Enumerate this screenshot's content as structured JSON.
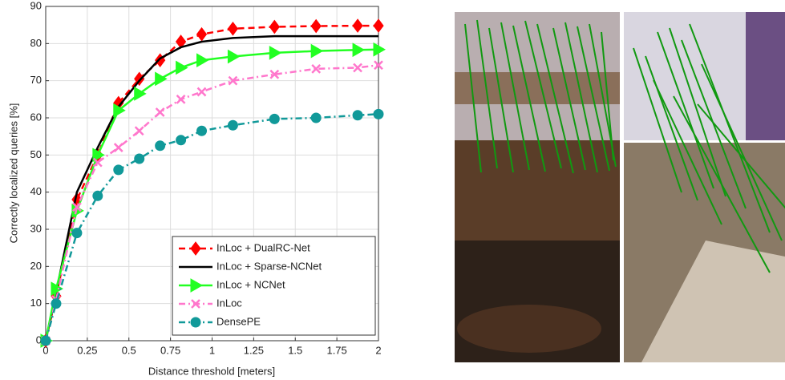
{
  "chart_data": {
    "type": "line",
    "xlabel": "Distance threshold [meters]",
    "ylabel": "Correctly localized queries [%]",
    "x": [
      0,
      0.0625,
      0.1875,
      0.3125,
      0.4375,
      0.5625,
      0.6875,
      0.8125,
      0.9375,
      1.125,
      1.375,
      1.625,
      1.875,
      2
    ],
    "xlim": [
      0,
      2
    ],
    "xticks": [
      0,
      0.25,
      0.5,
      0.75,
      1,
      1.25,
      1.5,
      1.75,
      2
    ],
    "ylim": [
      0,
      90
    ],
    "yticks": [
      0,
      10,
      20,
      30,
      40,
      50,
      60,
      70,
      80,
      90
    ],
    "grid": true,
    "legend": "lower right",
    "series": [
      {
        "name": "InLoc + DualRC-Net",
        "color": "#ff0000",
        "dash": "dashed",
        "marker": "diamond",
        "values": [
          0,
          12,
          38,
          50,
          64,
          70.5,
          75.5,
          80.5,
          82.5,
          84,
          84.5,
          84.7,
          84.8,
          84.8
        ]
      },
      {
        "name": "InLoc + Sparse-NCNet",
        "color": "#000000",
        "dash": "solid",
        "marker": "none",
        "values": [
          0,
          13,
          40,
          52,
          63,
          70,
          76,
          79,
          80.5,
          81.5,
          82,
          82,
          82,
          82
        ]
      },
      {
        "name": "InLoc + NCNet",
        "color": "#22ff22",
        "dash": "solid",
        "marker": "triangle",
        "values": [
          0,
          14,
          35,
          50,
          62,
          66.5,
          70.5,
          73.5,
          75.5,
          76.5,
          77.5,
          78,
          78.3,
          78.4
        ]
      },
      {
        "name": "InLoc",
        "color": "#ff77cc",
        "dash": "dashdot",
        "marker": "x",
        "values": [
          0,
          11,
          36,
          48,
          52,
          56.5,
          61.5,
          65,
          67,
          70,
          71.7,
          73.2,
          73.5,
          74.2
        ]
      },
      {
        "name": "DensePE",
        "color": "#119999",
        "dash": "dashdot",
        "marker": "circle",
        "values": [
          0,
          10,
          29,
          39,
          46,
          49,
          52.5,
          54,
          56.5,
          58,
          59.7,
          60,
          60.7,
          61
        ]
      }
    ]
  }
}
